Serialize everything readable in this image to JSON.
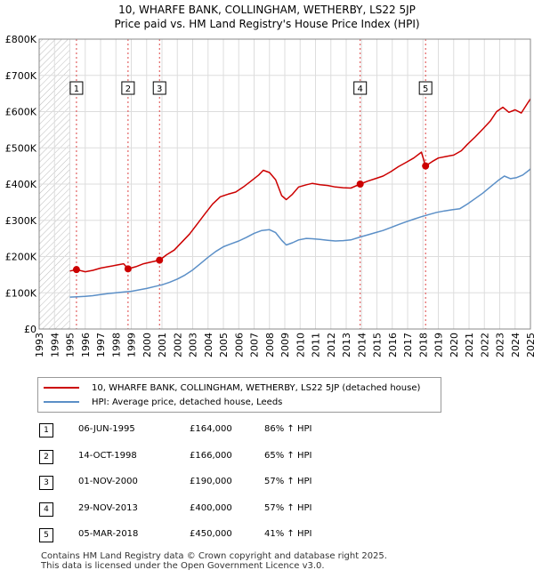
{
  "title_line1": "10, WHARFE BANK, COLLINGHAM, WETHERBY, LS22 5JP",
  "title_line2": "Price paid vs. HM Land Registry's House Price Index (HPI)",
  "chart_data": {
    "type": "line",
    "xlim": [
      1993,
      2025
    ],
    "ylim": [
      0,
      800000
    ],
    "x_ticks": [
      "1993",
      "1994",
      "1995",
      "1996",
      "1997",
      "1998",
      "1999",
      "2000",
      "2001",
      "2002",
      "2003",
      "2004",
      "2005",
      "2006",
      "2007",
      "2008",
      "2009",
      "2010",
      "2011",
      "2012",
      "2013",
      "2014",
      "2015",
      "2016",
      "2017",
      "2018",
      "2019",
      "2020",
      "2021",
      "2022",
      "2023",
      "2024",
      "2025"
    ],
    "y_ticks": [
      {
        "value": 0,
        "label": "£0"
      },
      {
        "value": 100000,
        "label": "£100K"
      },
      {
        "value": 200000,
        "label": "£200K"
      },
      {
        "value": 300000,
        "label": "£300K"
      },
      {
        "value": 400000,
        "label": "£400K"
      },
      {
        "value": 500000,
        "label": "£500K"
      },
      {
        "value": 600000,
        "label": "£600K"
      },
      {
        "value": 700000,
        "label": "£700K"
      },
      {
        "value": 800000,
        "label": "£800K"
      }
    ],
    "hatched_until": 1995,
    "series": [
      {
        "name": "10, WHARFE BANK, COLLINGHAM, WETHERBY, LS22 5JP (detached house)",
        "color": "#cc0000",
        "points": [
          [
            1995.0,
            160000
          ],
          [
            1995.43,
            164000
          ],
          [
            1996.0,
            158000
          ],
          [
            1996.5,
            162000
          ],
          [
            1997.0,
            168000
          ],
          [
            1997.5,
            172000
          ],
          [
            1998.0,
            176000
          ],
          [
            1998.5,
            180000
          ],
          [
            1998.79,
            166000
          ],
          [
            1999.3,
            172000
          ],
          [
            1999.8,
            180000
          ],
          [
            2000.3,
            185000
          ],
          [
            2000.84,
            190000
          ],
          [
            2001.3,
            205000
          ],
          [
            2001.8,
            218000
          ],
          [
            2002.3,
            240000
          ],
          [
            2002.8,
            262000
          ],
          [
            2003.3,
            290000
          ],
          [
            2003.8,
            318000
          ],
          [
            2004.3,
            345000
          ],
          [
            2004.8,
            365000
          ],
          [
            2005.3,
            372000
          ],
          [
            2005.8,
            378000
          ],
          [
            2006.3,
            392000
          ],
          [
            2006.8,
            408000
          ],
          [
            2007.3,
            425000
          ],
          [
            2007.6,
            438000
          ],
          [
            2008.0,
            432000
          ],
          [
            2008.4,
            412000
          ],
          [
            2008.8,
            368000
          ],
          [
            2009.1,
            357000
          ],
          [
            2009.5,
            372000
          ],
          [
            2009.9,
            392000
          ],
          [
            2010.4,
            398000
          ],
          [
            2010.8,
            402000
          ],
          [
            2011.3,
            398000
          ],
          [
            2011.8,
            396000
          ],
          [
            2012.3,
            392000
          ],
          [
            2012.8,
            390000
          ],
          [
            2013.3,
            389000
          ],
          [
            2013.91,
            400000
          ],
          [
            2014.4,
            408000
          ],
          [
            2014.9,
            415000
          ],
          [
            2015.4,
            422000
          ],
          [
            2015.9,
            434000
          ],
          [
            2016.4,
            448000
          ],
          [
            2016.9,
            460000
          ],
          [
            2017.4,
            472000
          ],
          [
            2017.9,
            488000
          ],
          [
            2018.17,
            450000
          ],
          [
            2018.6,
            462000
          ],
          [
            2019.0,
            472000
          ],
          [
            2019.5,
            476000
          ],
          [
            2020.0,
            480000
          ],
          [
            2020.5,
            492000
          ],
          [
            2020.9,
            510000
          ],
          [
            2021.4,
            530000
          ],
          [
            2021.9,
            552000
          ],
          [
            2022.4,
            575000
          ],
          [
            2022.8,
            600000
          ],
          [
            2023.2,
            612000
          ],
          [
            2023.6,
            598000
          ],
          [
            2024.0,
            605000
          ],
          [
            2024.4,
            596000
          ],
          [
            2024.8,
            622000
          ],
          [
            2025.0,
            635000
          ]
        ]
      },
      {
        "name": "HPI: Average price, detached house, Leeds",
        "color": "#5b8fc7",
        "points": [
          [
            1995.0,
            88000
          ],
          [
            1995.5,
            89000
          ],
          [
            1996.0,
            90000
          ],
          [
            1996.5,
            92000
          ],
          [
            1997.0,
            95000
          ],
          [
            1997.5,
            98000
          ],
          [
            1998.0,
            100000
          ],
          [
            1998.5,
            102000
          ],
          [
            1999.0,
            104000
          ],
          [
            1999.5,
            108000
          ],
          [
            2000.0,
            112000
          ],
          [
            2000.5,
            117000
          ],
          [
            2001.0,
            122000
          ],
          [
            2001.5,
            129000
          ],
          [
            2002.0,
            138000
          ],
          [
            2002.5,
            149000
          ],
          [
            2003.0,
            163000
          ],
          [
            2003.5,
            180000
          ],
          [
            2004.0,
            198000
          ],
          [
            2004.5,
            214000
          ],
          [
            2005.0,
            227000
          ],
          [
            2005.5,
            235000
          ],
          [
            2006.0,
            243000
          ],
          [
            2006.5,
            253000
          ],
          [
            2007.0,
            264000
          ],
          [
            2007.5,
            272000
          ],
          [
            2008.0,
            274000
          ],
          [
            2008.4,
            266000
          ],
          [
            2008.8,
            245000
          ],
          [
            2009.1,
            232000
          ],
          [
            2009.5,
            238000
          ],
          [
            2009.9,
            246000
          ],
          [
            2010.4,
            250000
          ],
          [
            2010.8,
            249000
          ],
          [
            2011.3,
            247000
          ],
          [
            2011.8,
            245000
          ],
          [
            2012.3,
            243000
          ],
          [
            2012.8,
            244000
          ],
          [
            2013.3,
            246000
          ],
          [
            2013.91,
            254000
          ],
          [
            2014.4,
            260000
          ],
          [
            2014.9,
            266000
          ],
          [
            2015.4,
            272000
          ],
          [
            2015.9,
            280000
          ],
          [
            2016.4,
            288000
          ],
          [
            2016.9,
            296000
          ],
          [
            2017.4,
            303000
          ],
          [
            2017.9,
            310000
          ],
          [
            2018.4,
            316000
          ],
          [
            2018.9,
            322000
          ],
          [
            2019.4,
            326000
          ],
          [
            2019.9,
            329000
          ],
          [
            2020.4,
            332000
          ],
          [
            2020.9,
            345000
          ],
          [
            2021.4,
            360000
          ],
          [
            2021.9,
            375000
          ],
          [
            2022.4,
            393000
          ],
          [
            2022.9,
            410000
          ],
          [
            2023.3,
            422000
          ],
          [
            2023.7,
            415000
          ],
          [
            2024.1,
            418000
          ],
          [
            2024.5,
            425000
          ],
          [
            2024.9,
            438000
          ],
          [
            2025.0,
            442000
          ]
        ]
      }
    ],
    "sale_markers": [
      {
        "num": "1",
        "x": 1995.43,
        "y": 164000
      },
      {
        "num": "2",
        "x": 1998.79,
        "y": 166000
      },
      {
        "num": "3",
        "x": 2000.84,
        "y": 190000
      },
      {
        "num": "4",
        "x": 2013.91,
        "y": 400000
      },
      {
        "num": "5",
        "x": 2018.17,
        "y": 450000
      }
    ],
    "marker_label_value": 665000
  },
  "legend": {
    "property_label": "10, WHARFE BANK, COLLINGHAM, WETHERBY, LS22 5JP (detached house)",
    "hpi_label": "HPI: Average price, detached house, Leeds",
    "property_color": "#cc0000",
    "hpi_color": "#5b8fc7"
  },
  "sales": [
    {
      "num": "1",
      "date": "06-JUN-1995",
      "price": "£164,000",
      "hpi": "86% ↑ HPI"
    },
    {
      "num": "2",
      "date": "14-OCT-1998",
      "price": "£166,000",
      "hpi": "65% ↑ HPI"
    },
    {
      "num": "3",
      "date": "01-NOV-2000",
      "price": "£190,000",
      "hpi": "57% ↑ HPI"
    },
    {
      "num": "4",
      "date": "29-NOV-2013",
      "price": "£400,000",
      "hpi": "57% ↑ HPI"
    },
    {
      "num": "5",
      "date": "05-MAR-2018",
      "price": "£450,000",
      "hpi": "41% ↑ HPI"
    }
  ],
  "footer": {
    "line1": "Contains HM Land Registry data © Crown copyright and database right 2025.",
    "line2": "This data is licensed under the Open Government Licence v3.0."
  }
}
